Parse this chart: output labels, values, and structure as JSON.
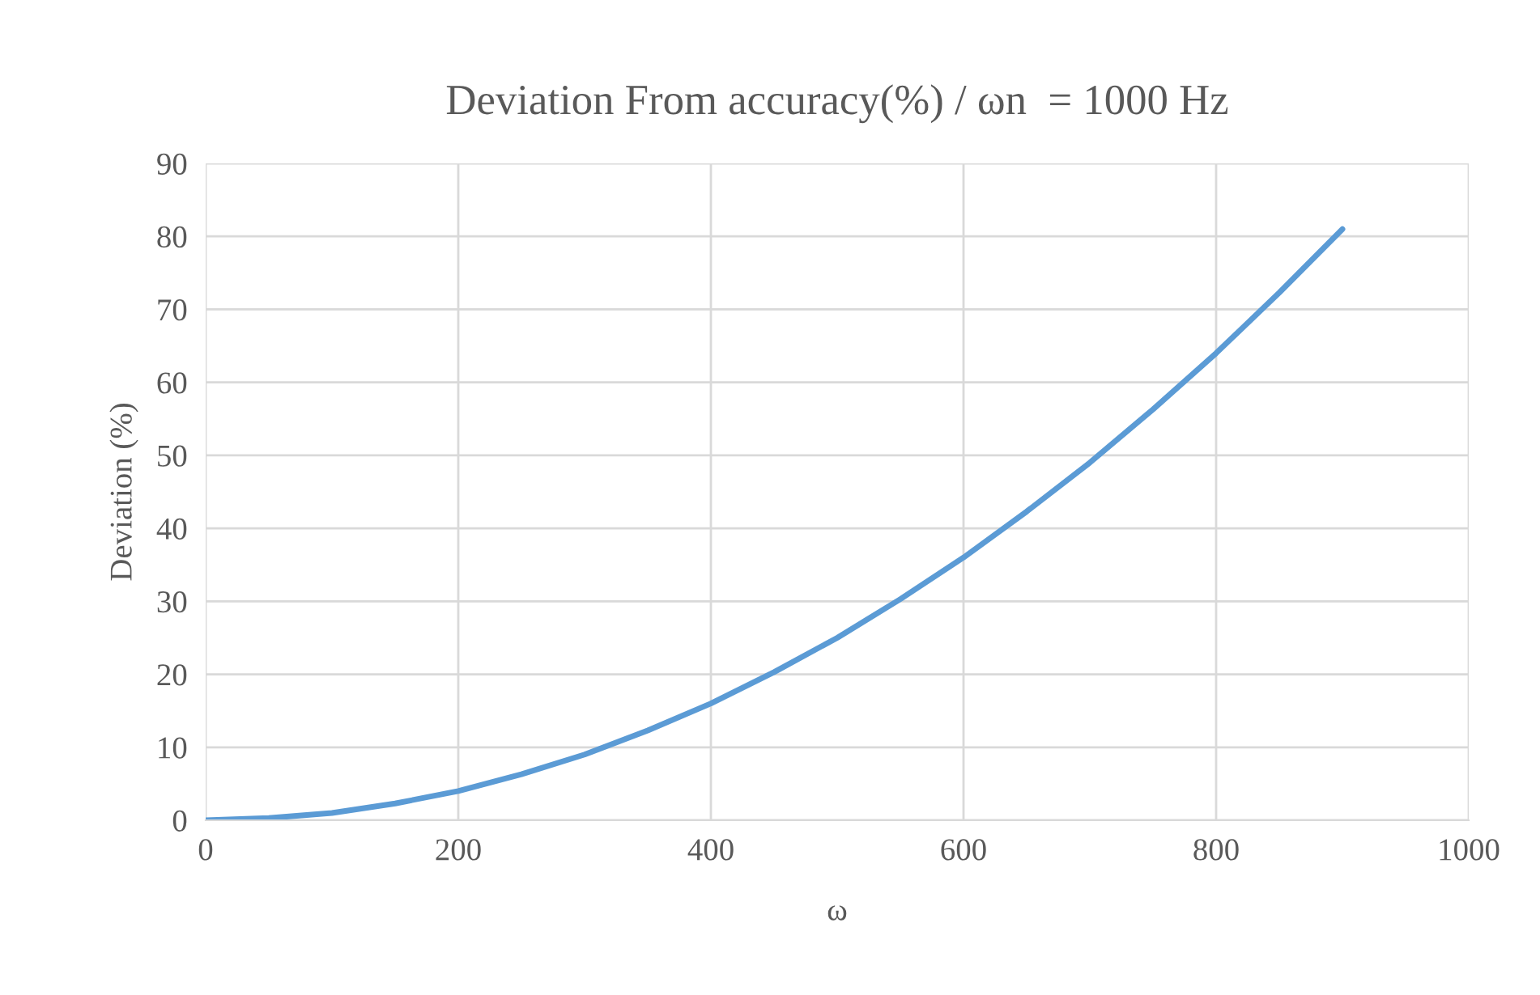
{
  "chart_data": {
    "type": "line",
    "title": "Deviation From accuracy(%) / ωn  = 1000 Hz",
    "xlabel": "ω",
    "ylabel": "Deviation (%)",
    "x": [
      0,
      50,
      100,
      150,
      200,
      250,
      300,
      350,
      400,
      450,
      500,
      550,
      600,
      650,
      700,
      750,
      800,
      850,
      900
    ],
    "series": [
      {
        "color": "#5b9bd5",
        "values": [
          0,
          0.3,
          1,
          2.3,
          4,
          6.3,
          9,
          12.3,
          16,
          20.3,
          25,
          30.3,
          36,
          42.3,
          49,
          56.3,
          64,
          72.3,
          81
        ]
      }
    ],
    "xlim": [
      0,
      1000
    ],
    "xticks": [
      0,
      200,
      400,
      600,
      800,
      1000
    ],
    "ylim": [
      0,
      90
    ],
    "yticks": [
      0,
      10,
      20,
      30,
      40,
      50,
      60,
      70,
      80,
      90
    ],
    "grid": true,
    "legend": false,
    "marker": "none",
    "line_style": "solid"
  }
}
